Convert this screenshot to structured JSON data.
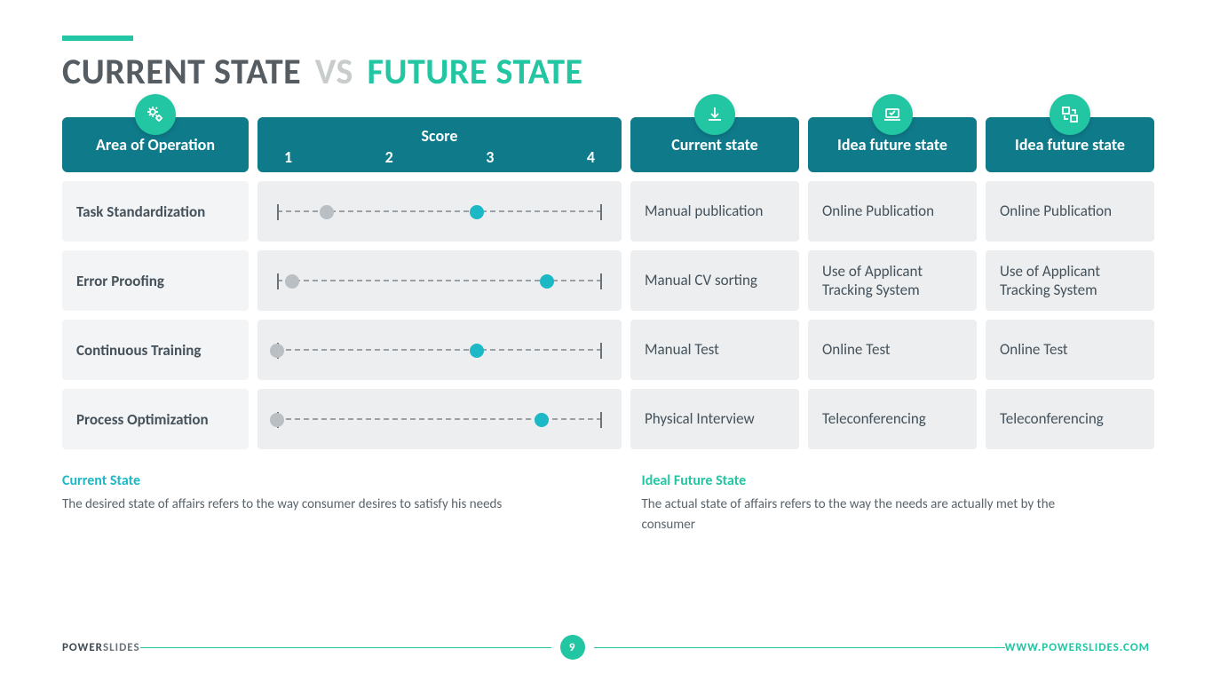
{
  "colors": {
    "accent": "#22c6a2",
    "accent_dark": "#13a085",
    "header_bg": "#0f7a8a",
    "title_dark": "#555c62",
    "title_muted": "#c9cccd",
    "cell_bg": "#eceeef",
    "area_bg": "#f3f4f5",
    "text": "#45525b",
    "dot_current": "#b9bfc2",
    "dot_future": "#1cb8c6",
    "current_label": "#1cb8c6",
    "rule": "#22c6a2"
  },
  "title": {
    "left": "CURRENT STATE",
    "mid": "VS",
    "right": "FUTURE STATE"
  },
  "headers": {
    "area": "Area of Operation",
    "score_label": "Score",
    "score_ticks": [
      "1",
      "2",
      "3",
      "4"
    ],
    "col3": "Current state",
    "col4": "Idea future state",
    "col5": "Idea future state"
  },
  "score_scale": {
    "min": 1,
    "max": 4.25,
    "tick_count": 4
  },
  "rows": [
    {
      "area": "Task Standardization",
      "current_score": 1.5,
      "future_score": 3.0,
      "current": "Manual publication",
      "future1": "Online Publication",
      "future2": "Online Publication"
    },
    {
      "area": "Error Proofing",
      "current_score": 1.15,
      "future_score": 3.7,
      "current": "Manual CV sorting",
      "future1": "Use of Applicant Tracking System",
      "future2": "Use of Applicant Tracking System"
    },
    {
      "area": "Continuous Training",
      "current_score": 1.0,
      "future_score": 3.0,
      "current": "Manual Test",
      "future1": "Online Test",
      "future2": "Online Test"
    },
    {
      "area": "Process Optimization",
      "current_score": 1.0,
      "future_score": 3.65,
      "current": "Physical Interview",
      "future1": "Teleconferencing",
      "future2": "Teleconferencing"
    }
  ],
  "descriptions": {
    "current": {
      "title": "Current State",
      "body": "The desired state of affairs refers to the way consumer desires to satisfy his needs"
    },
    "future": {
      "title": "Ideal Future  State",
      "body": "The actual state of affairs refers to the way the needs are actually met by the consumer"
    }
  },
  "footer": {
    "brand_bold": "POWER",
    "brand_light": "SLIDES",
    "page": "9",
    "url": "WWW.POWERSLIDES.COM"
  }
}
